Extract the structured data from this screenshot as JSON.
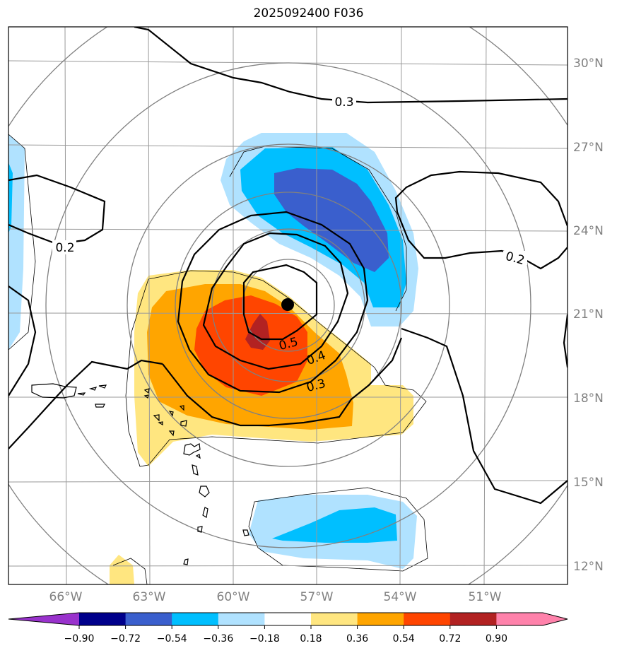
{
  "title": "2025092400 F036",
  "lat_labels": [
    "30°N",
    "27°N",
    "24°N",
    "21°N",
    "18°N",
    "15°N",
    "12°N"
  ],
  "lon_labels": [
    "66°W",
    "63°W",
    "60°W",
    "57°W",
    "54°W",
    "51°W"
  ],
  "contour_labels": [
    "0.3",
    "0.2",
    "0.2",
    "0.5",
    "0.4",
    "0.3"
  ],
  "colorbar": {
    "ticks": [
      "−0.90",
      "−0.72",
      "−0.54",
      "−0.36",
      "−0.18",
      "0.18",
      "0.36",
      "0.54",
      "0.72",
      "0.90"
    ],
    "colors": [
      "#9932cc",
      "#00008b",
      "#3a5fcd",
      "#00bfff",
      "#b0e2ff",
      "#ffffff",
      "#ffe680",
      "#ffa500",
      "#ff4500",
      "#b22222",
      "#ff82ab",
      "#ff82ab"
    ]
  },
  "colors": {
    "dark_blue": "#3a5fcd",
    "mid_blue": "#00bfff",
    "light_blue": "#b0e2ff",
    "light_yellow": "#ffe680",
    "orange": "#ffa500",
    "red_orange": "#ff4500",
    "dark_red": "#b22222",
    "grid": "#999999",
    "range_rings": "#808080"
  },
  "storm_center": {
    "lon": -58.2,
    "lat": 21.3
  }
}
